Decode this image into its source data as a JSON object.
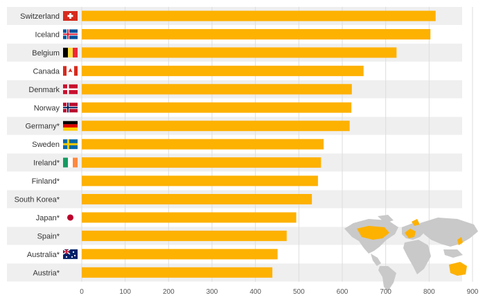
{
  "chart_data": {
    "type": "bar",
    "orientation": "horizontal",
    "categories": [
      "Switzerland",
      "Iceland",
      "Belgium",
      "Canada",
      "Denmark",
      "Norway",
      "Germany*",
      "Sweden",
      "Ireland*",
      "Finland*",
      "South Korea*",
      "Japan*",
      "Spain*",
      "Australia*",
      "Austria*"
    ],
    "values": [
      815,
      803,
      725,
      649,
      622,
      621,
      617,
      557,
      551,
      544,
      530,
      494,
      472,
      451,
      439
    ],
    "flags": [
      "ch",
      "is",
      "be",
      "ca",
      "dk",
      "no",
      "de",
      "se",
      "ie",
      "",
      "",
      "jp",
      "",
      "au",
      ""
    ],
    "xlim": [
      0,
      900
    ],
    "xticks": [
      0,
      100,
      200,
      300,
      400,
      500,
      600,
      700,
      800,
      900
    ],
    "grid": true,
    "colors": {
      "bar": "#FDB100",
      "row_alt": "#EFEFEF",
      "grid": "#DDDDDD",
      "map_land": "#C9C9C9",
      "map_highlight": "#FDB100"
    }
  }
}
